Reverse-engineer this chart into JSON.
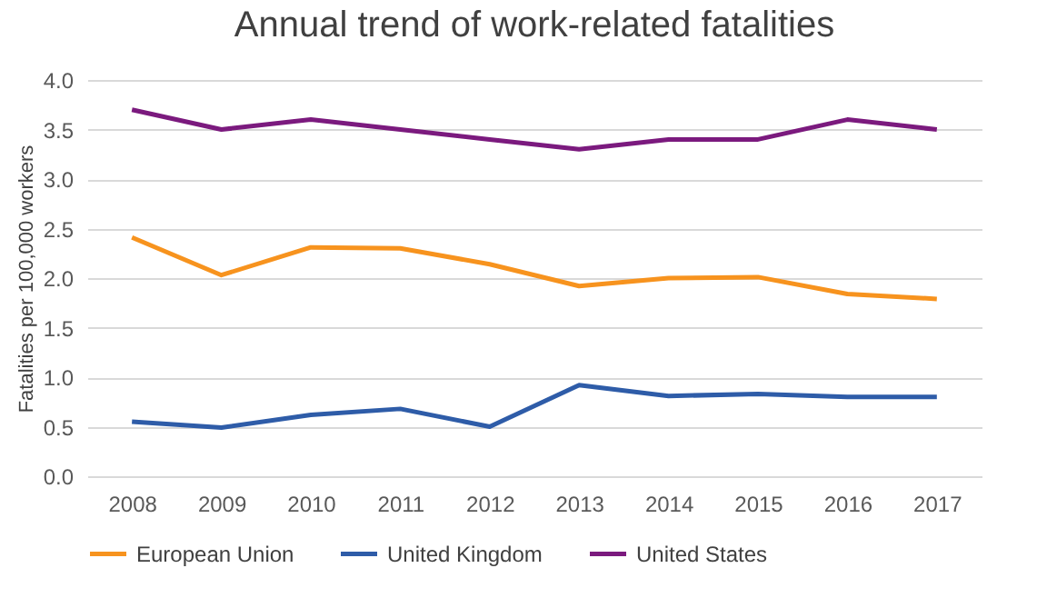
{
  "chart_data": {
    "type": "line",
    "title": "Annual trend of work-related fatalities",
    "ylabel": "Fatalities per 100,000 workers",
    "categories": [
      "2008",
      "2009",
      "2010",
      "2011",
      "2012",
      "2013",
      "2014",
      "2015",
      "2016",
      "2017"
    ],
    "series": [
      {
        "name": "European Union",
        "color": "#f7931e",
        "values": [
          2.41,
          2.03,
          2.31,
          2.3,
          2.14,
          1.92,
          2.0,
          2.01,
          1.84,
          1.79
        ]
      },
      {
        "name": "United Kingdom",
        "color": "#2e5ca8",
        "values": [
          0.55,
          0.49,
          0.62,
          0.68,
          0.5,
          0.92,
          0.81,
          0.83,
          0.8,
          0.8
        ]
      },
      {
        "name": "United States",
        "color": "#7b1a7e",
        "values": [
          3.7,
          3.5,
          3.6,
          3.5,
          3.4,
          3.3,
          3.4,
          3.4,
          3.6,
          3.5
        ]
      }
    ],
    "ylim": [
      0,
      4
    ],
    "yticks": [
      {
        "value": 0,
        "label": "0.0"
      },
      {
        "value": 0.5,
        "label": "0.5"
      },
      {
        "value": 1,
        "label": "1.0"
      },
      {
        "value": 1.5,
        "label": "1.5"
      },
      {
        "value": 2,
        "label": "2.0"
      },
      {
        "value": 2.5,
        "label": "2.5"
      },
      {
        "value": 3,
        "label": "3.0"
      },
      {
        "value": 3.5,
        "label": "3.5"
      },
      {
        "value": 4,
        "label": "4.0"
      }
    ],
    "grid": "y",
    "legend": "bottom",
    "marker": "none",
    "line_style": "solid"
  }
}
